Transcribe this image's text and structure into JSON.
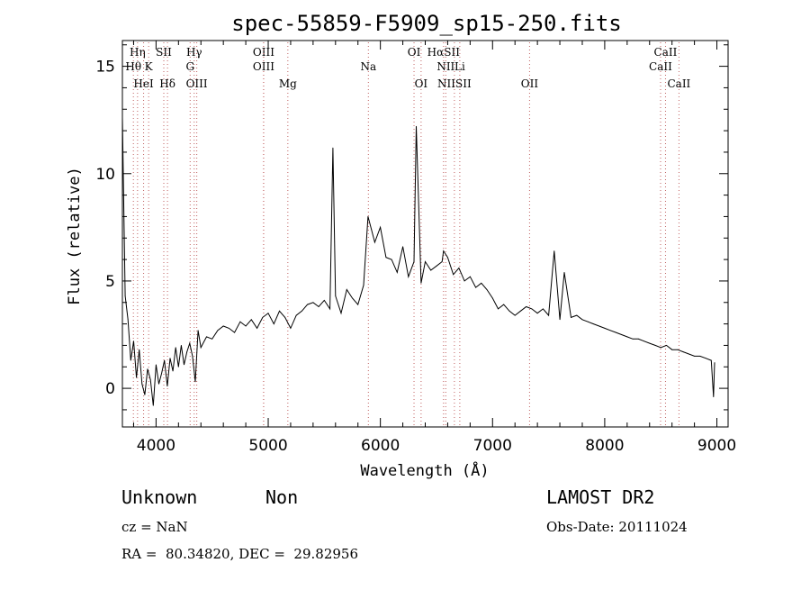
{
  "chart_data": {
    "type": "line",
    "title": "spec-55859-F5909_sp15-250.fits",
    "xlabel": "Wavelength (Å)",
    "ylabel": "Flux (relative)",
    "xlim": [
      3700,
      9100
    ],
    "ylim": [
      -1.8,
      16.2
    ],
    "x_ticks": [
      4000,
      5000,
      6000,
      7000,
      8000,
      9000
    ],
    "y_ticks": [
      0,
      5,
      10,
      15
    ],
    "grid": false,
    "series": [
      {
        "x": [
          3700,
          3725,
          3750,
          3775,
          3800,
          3825,
          3850,
          3875,
          3900,
          3925,
          3950,
          3975,
          4000,
          4025,
          4050,
          4075,
          4100,
          4125,
          4150,
          4175,
          4200,
          4225,
          4250,
          4275,
          4300,
          4325,
          4350,
          4375,
          4400,
          4450,
          4500,
          4550,
          4600,
          4650,
          4700,
          4750,
          4800,
          4850,
          4900,
          4950,
          5000,
          5050,
          5100,
          5150,
          5200,
          5250,
          5300,
          5350,
          5400,
          5450,
          5500,
          5550,
          5577,
          5600,
          5650,
          5700,
          5750,
          5800,
          5850,
          5890,
          5920,
          5950,
          6000,
          6050,
          6100,
          6150,
          6200,
          6250,
          6300,
          6320,
          6363,
          6400,
          6450,
          6500,
          6550,
          6563,
          6600,
          6650,
          6700,
          6750,
          6800,
          6850,
          6900,
          6950,
          7000,
          7050,
          7100,
          7150,
          7200,
          7250,
          7300,
          7350,
          7400,
          7450,
          7500,
          7550,
          7600,
          7640,
          7700,
          7750,
          7800,
          7850,
          7900,
          7950,
          8000,
          8050,
          8100,
          8150,
          8200,
          8250,
          8300,
          8350,
          8400,
          8450,
          8500,
          8550,
          8600,
          8650,
          8700,
          8750,
          8800,
          8850,
          8900,
          8950,
          8970,
          8980
        ],
        "y": [
          12.6,
          4.3,
          3.2,
          1.3,
          2.2,
          0.5,
          1.8,
          0.2,
          -0.3,
          0.9,
          0.4,
          -0.8,
          1.1,
          0.2,
          0.7,
          1.3,
          0.1,
          1.4,
          0.8,
          1.9,
          1.0,
          2.0,
          1.1,
          1.7,
          2.1,
          1.5,
          0.3,
          2.7,
          1.9,
          2.4,
          2.3,
          2.7,
          2.9,
          2.8,
          2.6,
          3.1,
          2.9,
          3.2,
          2.8,
          3.3,
          3.5,
          3.0,
          3.6,
          3.3,
          2.8,
          3.4,
          3.6,
          3.9,
          4.0,
          3.8,
          4.1,
          3.7,
          11.2,
          4.3,
          3.5,
          4.6,
          4.2,
          3.9,
          4.8,
          8.0,
          7.4,
          6.8,
          7.5,
          6.1,
          6.0,
          5.4,
          6.6,
          5.2,
          5.9,
          12.2,
          4.9,
          5.9,
          5.5,
          5.7,
          5.9,
          6.4,
          6.1,
          5.3,
          5.6,
          5.0,
          5.2,
          4.7,
          4.9,
          4.6,
          4.2,
          3.7,
          3.9,
          3.6,
          3.4,
          3.6,
          3.8,
          3.7,
          3.5,
          3.7,
          3.4,
          6.4,
          3.2,
          5.4,
          3.3,
          3.4,
          3.2,
          3.1,
          3.0,
          2.9,
          2.8,
          2.7,
          2.6,
          2.5,
          2.4,
          2.3,
          2.3,
          2.2,
          2.1,
          2.0,
          1.9,
          2.0,
          1.8,
          1.8,
          1.7,
          1.6,
          1.5,
          1.5,
          1.4,
          1.3,
          -0.4,
          1.2
        ]
      }
    ],
    "line_markers": [
      {
        "label": "Hη",
        "x": 3835,
        "row": 0
      },
      {
        "label": "SII",
        "x": 4069,
        "row": 0
      },
      {
        "label": "Hγ",
        "x": 4340,
        "row": 0
      },
      {
        "label": "OIII",
        "x": 4959,
        "row": 0
      },
      {
        "label": "OI",
        "x": 6300,
        "row": 0
      },
      {
        "label": "HαSII",
        "x": 6563,
        "row": 0
      },
      {
        "label": "CaII",
        "x": 8542,
        "row": 0
      },
      {
        "label": "Hθ",
        "x": 3798,
        "row": 1
      },
      {
        "label": "K",
        "x": 3934,
        "row": 1
      },
      {
        "label": "G",
        "x": 4304,
        "row": 1
      },
      {
        "label": "OIII",
        "x": 4959,
        "row": 1
      },
      {
        "label": "Na",
        "x": 5893,
        "row": 1
      },
      {
        "label": "NII",
        "x": 6583,
        "row": 1
      },
      {
        "label": "Li",
        "x": 6708,
        "row": 1
      },
      {
        "label": "CaII",
        "x": 8498,
        "row": 1
      },
      {
        "label": "HeI",
        "x": 3889,
        "row": 2
      },
      {
        "label": "Hδ",
        "x": 4102,
        "row": 2
      },
      {
        "label": "OIII",
        "x": 4363,
        "row": 2
      },
      {
        "label": "Mg",
        "x": 5175,
        "row": 2
      },
      {
        "label": "OI",
        "x": 6363,
        "row": 2
      },
      {
        "label": "NIISII",
        "x": 6660,
        "row": 2
      },
      {
        "label": "OII",
        "x": 7330,
        "row": 2
      },
      {
        "label": "CaII",
        "x": 8662,
        "row": 2
      }
    ]
  },
  "info": {
    "class_label": "Unknown",
    "subclass_label": "Non",
    "survey": "LAMOST DR2",
    "cz": "cz = NaN",
    "obs_date": "Obs-Date: 20111024",
    "coords": "RA =  80.34820, DEC =  29.82956"
  }
}
